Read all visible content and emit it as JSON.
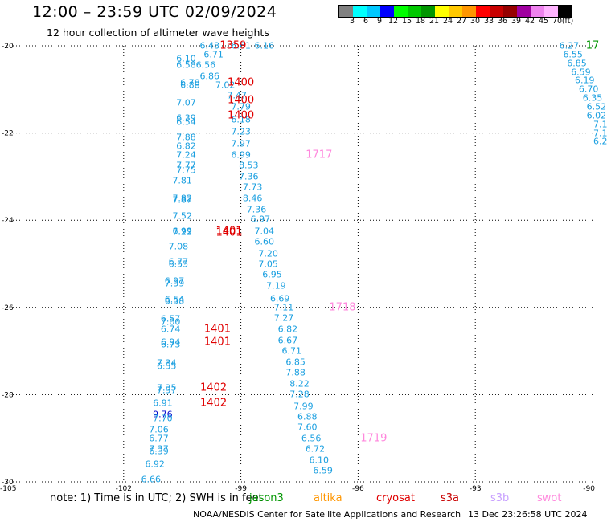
{
  "title": "12:00 – 23:59 UTC 02/09/2024",
  "subtitle": "12 hour collection of altimeter wave heights",
  "colorbar": {
    "colors": [
      "#808080",
      "#00ffff",
      "#00c8ff",
      "#0000ff",
      "#00ff00",
      "#00c800",
      "#009600",
      "#ffff00",
      "#ffc800",
      "#ff9600",
      "#ff0000",
      "#c80000",
      "#960000",
      "#a000a0",
      "#ee82ee",
      "#ffb4ff",
      "#000000"
    ],
    "ticks": [
      "3",
      "6",
      "9",
      "12",
      "15",
      "18",
      "21",
      "24",
      "27",
      "30",
      "33",
      "36",
      "39",
      "42",
      "45",
      "70",
      "(ft)"
    ]
  },
  "axes": {
    "lat_labels": [
      "-20",
      "-22",
      "-24",
      "-26",
      "-28",
      "-30"
    ],
    "lon_labels": [
      "-105",
      "-102",
      "-99",
      "-96",
      "-93",
      "-90"
    ]
  },
  "values": [
    [
      "6.48",
      -99.8,
      -20.0
    ],
    [
      "6.61",
      -99.0,
      -20.0
    ],
    [
      "6.16",
      -98.4,
      -20.0
    ],
    [
      "6.71",
      -99.7,
      -20.2
    ],
    [
      "6.10",
      -100.4,
      -20.3
    ],
    [
      "6.58",
      -100.4,
      -20.45
    ],
    [
      "6.56",
      -99.9,
      -20.45
    ],
    [
      "6.86",
      -99.8,
      -20.7
    ],
    [
      "6.78",
      -100.3,
      -20.85
    ],
    [
      "6.88",
      -100.3,
      -20.9
    ],
    [
      "7.02",
      -99.4,
      -20.9
    ],
    [
      "7.47",
      -99.1,
      -21.15
    ],
    [
      "7.07",
      -100.4,
      -21.3
    ],
    [
      "7.79",
      -99.0,
      -21.4
    ],
    [
      "6.39",
      -100.4,
      -21.65
    ],
    [
      "6.18",
      -99.0,
      -21.7
    ],
    [
      "6.54",
      -100.4,
      -21.75
    ],
    [
      "7.23",
      -99.0,
      -21.97
    ],
    [
      "7.88",
      -100.4,
      -22.1
    ],
    [
      "7.97",
      -99.0,
      -22.25
    ],
    [
      "6.82",
      -100.4,
      -22.3
    ],
    [
      "6.99",
      -99.0,
      -22.5
    ],
    [
      "7.24",
      -100.4,
      -22.5
    ],
    [
      "8.53",
      -98.8,
      -22.74
    ],
    [
      "7.77",
      -100.4,
      -22.74
    ],
    [
      "7.75",
      -100.4,
      -22.85
    ],
    [
      "7.36",
      -98.8,
      -23.0
    ],
    [
      "7.81",
      -100.5,
      -23.1
    ],
    [
      "7.73",
      -98.7,
      -23.25
    ],
    [
      "7.82",
      -100.5,
      -23.5
    ],
    [
      "7.87",
      -100.5,
      -23.54
    ],
    [
      "8.46",
      -98.7,
      -23.5
    ],
    [
      "7.36",
      -98.6,
      -23.75
    ],
    [
      "7.52",
      -100.5,
      -23.9
    ],
    [
      "6.97",
      -98.5,
      -23.97
    ],
    [
      "6.99",
      -100.5,
      -24.25
    ],
    [
      "7.22",
      -100.5,
      -24.27
    ],
    [
      "7.04",
      -98.4,
      -24.25
    ],
    [
      "6.60",
      -98.4,
      -24.5
    ],
    [
      "7.08",
      -100.6,
      -24.6
    ],
    [
      "7.20",
      -98.3,
      -24.77
    ],
    [
      "6.77",
      -100.6,
      -24.95
    ],
    [
      "6.55",
      -100.6,
      -25.0
    ],
    [
      "7.05",
      -98.3,
      -25.0
    ],
    [
      "6.95",
      -98.2,
      -25.25
    ],
    [
      "6.97",
      -100.7,
      -25.4
    ],
    [
      "7.39",
      -100.7,
      -25.45
    ],
    [
      "7.19",
      -98.1,
      -25.5
    ],
    [
      "6.54",
      -100.7,
      -25.82
    ],
    [
      "6.58",
      -100.7,
      -25.86
    ],
    [
      "6.69",
      -98.0,
      -25.8
    ],
    [
      "7.11",
      -97.9,
      -26.0
    ],
    [
      "6.57",
      -100.8,
      -26.27
    ],
    [
      "7.00",
      -100.8,
      -26.33
    ],
    [
      "7.27",
      -97.9,
      -26.25
    ],
    [
      "6.74",
      -100.8,
      -26.5
    ],
    [
      "6.82",
      -97.8,
      -26.5
    ],
    [
      "6.67",
      -97.8,
      -26.75
    ],
    [
      "6.94",
      -100.8,
      -26.8
    ],
    [
      "6.73",
      -100.8,
      -26.86
    ],
    [
      "6.71",
      -97.7,
      -27.0
    ],
    [
      "6.85",
      -97.6,
      -27.25
    ],
    [
      "7.34",
      -100.9,
      -27.27
    ],
    [
      "6.55",
      -100.9,
      -27.35
    ],
    [
      "7.88",
      -97.6,
      -27.5
    ],
    [
      "8.22",
      -97.5,
      -27.75
    ],
    [
      "7.35",
      -100.9,
      -27.85
    ],
    [
      "7.57",
      -100.9,
      -27.9
    ],
    [
      "7.28",
      -97.5,
      -28.0
    ],
    [
      "6.91",
      -101.0,
      -28.2
    ],
    [
      "7.99",
      -97.4,
      -28.27
    ],
    [
      "9.76",
      -101.0,
      -28.45
    ],
    [
      "6.88",
      -97.3,
      -28.5
    ],
    [
      "7.70",
      -101.0,
      -28.55
    ],
    [
      "7.60",
      -97.3,
      -28.75
    ],
    [
      "7.06",
      -101.1,
      -28.8
    ],
    [
      "6.77",
      -101.1,
      -29.0
    ],
    [
      "6.56",
      -97.2,
      -29.0
    ],
    [
      "6.72",
      -97.1,
      -29.25
    ],
    [
      "7.37",
      -101.1,
      -29.25
    ],
    [
      "6.39",
      -101.1,
      -29.3
    ],
    [
      "6.10",
      -97.0,
      -29.5
    ],
    [
      "6.92",
      -101.2,
      -29.6
    ],
    [
      "6.59",
      -96.9,
      -29.75
    ],
    [
      "6.66",
      -101.3,
      -29.95
    ],
    [
      "6.27",
      -90.6,
      -20.0
    ],
    [
      "6.55",
      -90.5,
      -20.2
    ],
    [
      "6.85",
      -90.4,
      -20.4
    ],
    [
      "6.59",
      -90.3,
      -20.6
    ],
    [
      "6.19",
      -90.2,
      -20.8
    ],
    [
      "6.70",
      -90.1,
      -21.0
    ],
    [
      "6.35",
      -90.0,
      -21.2
    ],
    [
      "6.52",
      -89.9,
      -21.4
    ],
    [
      "6.02",
      -89.9,
      -21.6
    ],
    [
      "7.1",
      -89.8,
      -21.8
    ],
    [
      "7.1",
      -89.8,
      -22.0
    ],
    [
      "6.2",
      -89.8,
      -22.2
    ]
  ],
  "passes": [
    [
      "1359",
      -99.2,
      -20.0,
      "#e00000"
    ],
    [
      "1400",
      -99.0,
      -20.85,
      "#e00000"
    ],
    [
      "1400",
      -99.0,
      -21.25,
      "#e00000"
    ],
    [
      "1400",
      -99.0,
      -21.6,
      "#e00000"
    ],
    [
      "1717",
      -97.0,
      -22.5,
      "#ff88dd"
    ],
    [
      "1401",
      -99.3,
      -24.25,
      "#e00000"
    ],
    [
      "1401",
      -99.3,
      -24.29,
      "#e00000"
    ],
    [
      "1718",
      -96.4,
      -26.0,
      "#ff88dd"
    ],
    [
      "1401",
      -99.6,
      -26.5,
      "#e00000"
    ],
    [
      "1401",
      -99.6,
      -26.8,
      "#e00000"
    ],
    [
      "1402",
      -99.7,
      -27.85,
      "#e00000"
    ],
    [
      "1402",
      -99.7,
      -28.2,
      "#e00000"
    ],
    [
      "1719",
      -95.6,
      -29.0,
      "#ff88dd"
    ],
    [
      "17",
      -90.0,
      -20.0,
      "#009600"
    ]
  ],
  "note": "note:  1) Time is in UTC; 2) SWH is in feet",
  "legend": [
    {
      "label": "jason3",
      "color": "#009600"
    },
    {
      "label": "altika",
      "color": "#ff9600"
    },
    {
      "label": "cryosat",
      "color": "#e00000"
    },
    {
      "label": "s3a",
      "color": "#c80000"
    },
    {
      "label": "s3b",
      "color": "#c8a0ff"
    },
    {
      "label": "swot",
      "color": "#ff88dd"
    }
  ],
  "footer_credit": "NOAA/NESDIS Center for Satellite Applications and Research",
  "footer_date": "13 Dec 23:26:58 UTC 2024"
}
